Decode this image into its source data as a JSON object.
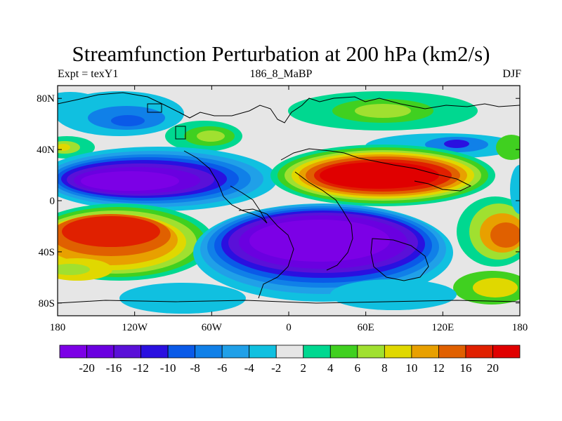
{
  "header": {
    "title": "Streamfunction Perturbation at 200 hPa (km2/s)",
    "left_label": "Expt = texY1",
    "center_label": "186_8_MaBP",
    "right_label": "DJF"
  },
  "map": {
    "lat_ticks": [
      {
        "value": 80,
        "label": "80N"
      },
      {
        "value": 40,
        "label": "40N"
      },
      {
        "value": 0,
        "label": "0"
      },
      {
        "value": -40,
        "label": "40S"
      },
      {
        "value": -80,
        "label": "80S"
      }
    ],
    "lon_ticks": [
      {
        "value": -180,
        "label": "180"
      },
      {
        "value": -120,
        "label": "120W"
      },
      {
        "value": -60,
        "label": "60W"
      },
      {
        "value": 0,
        "label": "0"
      },
      {
        "value": 60,
        "label": "60E"
      },
      {
        "value": 120,
        "label": "120E"
      },
      {
        "value": 180,
        "label": "180"
      }
    ],
    "lon_range": [
      -180,
      180
    ],
    "lat_range": [
      -90,
      90
    ]
  },
  "colorbar": {
    "colors": [
      "#7c00e6",
      "#6a00e0",
      "#5a10d8",
      "#2a10e0",
      "#0a5ae8",
      "#1080e8",
      "#20a0e8",
      "#10c0e0",
      "#e6e6e6",
      "#00d890",
      "#40d020",
      "#a0e030",
      "#e0d800",
      "#e8a000",
      "#e06000",
      "#e02000",
      "#e00000"
    ],
    "labels": [
      "-20",
      "-16",
      "-12",
      "-10",
      "-8",
      "-6",
      "-4",
      "-2",
      "2",
      "4",
      "6",
      "8",
      "10",
      "12",
      "16",
      "20"
    ]
  }
}
